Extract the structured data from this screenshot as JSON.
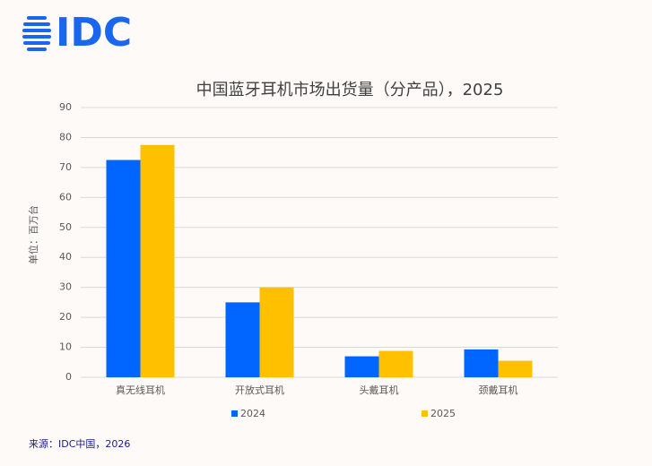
{
  "logo": "IDC",
  "chart_data": {
    "type": "bar",
    "title": "中国蓝牙耳机市场出货量（分产品），2025",
    "y_label": "单位：百万台",
    "categories": [
      "真无线耳机",
      "开放式耳机",
      "头戴耳机",
      "颈戴耳机"
    ],
    "series": [
      {
        "name": "2024",
        "color": "#0066ff",
        "values": [
          72.5,
          25,
          7,
          9.3
        ]
      },
      {
        "name": "2025",
        "color": "#ffc000",
        "values": [
          77.5,
          30,
          8.8,
          5.5
        ]
      }
    ],
    "ylim": [
      0,
      90
    ],
    "yticks": [
      0,
      10,
      20,
      30,
      40,
      50,
      60,
      70,
      80,
      90
    ],
    "grid": true,
    "legend": "bottom"
  },
  "source": "来源：IDC中国，2026"
}
